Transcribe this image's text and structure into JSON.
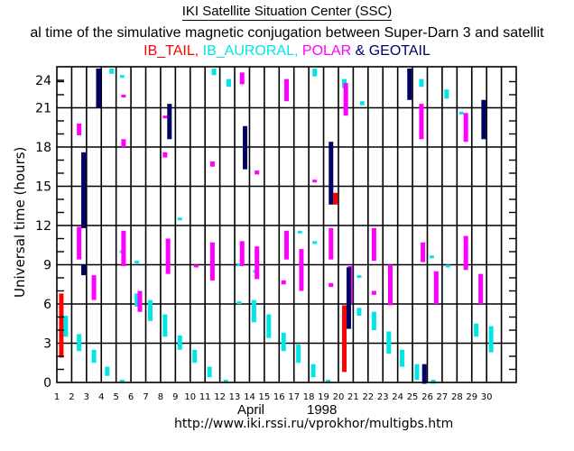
{
  "header": {
    "title": "IKI Satellite Situation Center (SSC)",
    "subtitle": "al time of the simulative magnetic conjugation between Super-Darn 3 and satellit",
    "legend": [
      {
        "label": "IB_TAIL,",
        "color": "#ff0000"
      },
      {
        "label": " IB_AURORAL,",
        "color": "#00e5e5"
      },
      {
        "label": " POLAR",
        "color": "#ff00ff"
      },
      {
        "label": " & GEOTAIL",
        "color": "#000066"
      }
    ]
  },
  "footer": {
    "month": "April",
    "year": "1998",
    "url": "http://www.iki.rssi.ru/vprokhor/multigbs.htm"
  },
  "chart_data": {
    "type": "scatter",
    "title": "IKI Satellite Situation Center (SSC)",
    "subtitle": "al time of the simulative magnetic conjugation between Super-Darn 3 and satellit",
    "xlabel": "April 1998",
    "ylabel": "Universal time (hours)",
    "xlim": [
      1,
      32
    ],
    "ylim": [
      0,
      24
    ],
    "x_ticks": [
      1,
      2,
      3,
      4,
      5,
      6,
      7,
      8,
      9,
      10,
      11,
      12,
      13,
      14,
      15,
      16,
      17,
      18,
      19,
      20,
      21,
      22,
      23,
      24,
      25,
      26,
      27,
      28,
      29,
      30
    ],
    "y_ticks": [
      0,
      3,
      6,
      9,
      12,
      15,
      18,
      21,
      24
    ],
    "grid": true,
    "legend_position": "top",
    "series": [
      {
        "name": "IB_TAIL",
        "color": "#ff0000",
        "segments": [
          {
            "day": 1.3,
            "start": 1.9,
            "end": 6.8
          },
          {
            "day": 19.8,
            "start": 13.6,
            "end": 14.5
          },
          {
            "day": 20.4,
            "start": 0.8,
            "end": 5.9
          }
        ]
      },
      {
        "name": "IB_AURORAL",
        "color": "#00e5e5",
        "segments": [
          {
            "day": 1.6,
            "start": 3.5,
            "end": 5.1
          },
          {
            "day": 2.5,
            "start": 2.4,
            "end": 3.7
          },
          {
            "day": 3.5,
            "start": 1.5,
            "end": 2.5
          },
          {
            "day": 4.4,
            "start": 0.5,
            "end": 1.2
          },
          {
            "day": 4.7,
            "start": 23.6,
            "end": 24.0
          },
          {
            "day": 5.4,
            "start": 23.3,
            "end": 23.5
          },
          {
            "day": 5.4,
            "start": -0.1,
            "end": 0.1
          },
          {
            "day": 5.4,
            "start": 9.9,
            "end": 10.1
          },
          {
            "day": 6.4,
            "start": 9.1,
            "end": 9.3
          },
          {
            "day": 6.4,
            "start": 5.8,
            "end": 6.8
          },
          {
            "day": 7.3,
            "start": 4.7,
            "end": 6.3
          },
          {
            "day": 8.3,
            "start": 3.5,
            "end": 5.2
          },
          {
            "day": 9.3,
            "start": 2.5,
            "end": 3.6
          },
          {
            "day": 9.3,
            "start": 12.4,
            "end": 12.6
          },
          {
            "day": 10.3,
            "start": 1.5,
            "end": 2.5
          },
          {
            "day": 11.3,
            "start": 0.4,
            "end": 1.2
          },
          {
            "day": 11.6,
            "start": 23.5,
            "end": 24.0
          },
          {
            "day": 12.6,
            "start": 22.6,
            "end": 23.2
          },
          {
            "day": 12.4,
            "start": -0.1,
            "end": 0.1
          },
          {
            "day": 13.3,
            "start": 6.0,
            "end": 6.2
          },
          {
            "day": 13.3,
            "start": 8.9,
            "end": 9.1
          },
          {
            "day": 14.3,
            "start": 4.6,
            "end": 6.3
          },
          {
            "day": 14.4,
            "start": 8.4,
            "end": 8.6
          },
          {
            "day": 15.3,
            "start": 3.4,
            "end": 5.2
          },
          {
            "day": 16.3,
            "start": 2.4,
            "end": 3.8
          },
          {
            "day": 17.3,
            "start": 1.5,
            "end": 2.9
          },
          {
            "day": 17.4,
            "start": 11.4,
            "end": 11.6
          },
          {
            "day": 18.3,
            "start": 0.4,
            "end": 1.4
          },
          {
            "day": 18.4,
            "start": 10.6,
            "end": 10.8
          },
          {
            "day": 18.4,
            "start": 23.4,
            "end": 24.0
          },
          {
            "day": 19.3,
            "start": -0.1,
            "end": 0.1
          },
          {
            "day": 20.4,
            "start": 22.5,
            "end": 23.2
          },
          {
            "day": 21.4,
            "start": 8.0,
            "end": 8.2
          },
          {
            "day": 21.4,
            "start": 5.1,
            "end": 5.7
          },
          {
            "day": 21.6,
            "start": 21.2,
            "end": 21.5
          },
          {
            "day": 22.4,
            "start": 4.0,
            "end": 5.4
          },
          {
            "day": 23.4,
            "start": 2.2,
            "end": 3.9
          },
          {
            "day": 24.3,
            "start": 1.2,
            "end": 2.5
          },
          {
            "day": 24.8,
            "start": 23.5,
            "end": 24.0
          },
          {
            "day": 25.3,
            "start": 0.2,
            "end": 1.4
          },
          {
            "day": 25.6,
            "start": 22.6,
            "end": 23.2
          },
          {
            "day": 26.3,
            "start": 9.5,
            "end": 9.7
          },
          {
            "day": 26.4,
            "start": -0.1,
            "end": 0.2
          },
          {
            "day": 27.3,
            "start": 21.7,
            "end": 22.4
          },
          {
            "day": 27.4,
            "start": 8.8,
            "end": 9.0
          },
          {
            "day": 28.3,
            "start": 20.5,
            "end": 20.7
          },
          {
            "day": 29.3,
            "start": 3.5,
            "end": 4.5
          },
          {
            "day": 30.3,
            "start": 2.3,
            "end": 4.3
          }
        ]
      },
      {
        "name": "POLAR",
        "color": "#ff00ff",
        "segments": [
          {
            "day": 2.5,
            "start": 18.9,
            "end": 19.8
          },
          {
            "day": 2.5,
            "start": 9.4,
            "end": 11.9
          },
          {
            "day": 3.5,
            "start": 6.3,
            "end": 8.2
          },
          {
            "day": 5.5,
            "start": 21.8,
            "end": 22.0
          },
          {
            "day": 5.5,
            "start": 18.0,
            "end": 18.6
          },
          {
            "day": 5.5,
            "start": 8.9,
            "end": 11.6
          },
          {
            "day": 6.6,
            "start": 5.4,
            "end": 7.0
          },
          {
            "day": 8.3,
            "start": 17.2,
            "end": 17.6
          },
          {
            "day": 8.3,
            "start": 20.2,
            "end": 20.4
          },
          {
            "day": 8.5,
            "start": 8.3,
            "end": 11.0
          },
          {
            "day": 10.4,
            "start": 8.8,
            "end": 9.0
          },
          {
            "day": 11.5,
            "start": 16.5,
            "end": 16.9
          },
          {
            "day": 11.5,
            "start": 7.8,
            "end": 10.7
          },
          {
            "day": 13.5,
            "start": 22.8,
            "end": 23.7
          },
          {
            "day": 13.5,
            "start": 8.9,
            "end": 10.8
          },
          {
            "day": 14.5,
            "start": 15.9,
            "end": 16.2
          },
          {
            "day": 14.5,
            "start": 7.9,
            "end": 10.4
          },
          {
            "day": 16.5,
            "start": 21.5,
            "end": 23.2
          },
          {
            "day": 16.5,
            "start": 9.4,
            "end": 11.6
          },
          {
            "day": 16.3,
            "start": 7.5,
            "end": 7.8
          },
          {
            "day": 17.5,
            "start": 7.0,
            "end": 10.2
          },
          {
            "day": 18.4,
            "start": 15.3,
            "end": 15.5
          },
          {
            "day": 19.5,
            "start": 9.4,
            "end": 11.8
          },
          {
            "day": 19.5,
            "start": 7.3,
            "end": 7.6
          },
          {
            "day": 20.5,
            "start": 20.4,
            "end": 22.9
          },
          {
            "day": 20.8,
            "start": 6.0,
            "end": 8.9
          },
          {
            "day": 22.4,
            "start": 9.3,
            "end": 11.8
          },
          {
            "day": 22.4,
            "start": 6.7,
            "end": 7.0
          },
          {
            "day": 23.5,
            "start": 5.9,
            "end": 9.0
          },
          {
            "day": 25.6,
            "start": 18.6,
            "end": 21.3
          },
          {
            "day": 25.7,
            "start": 9.2,
            "end": 10.7
          },
          {
            "day": 26.6,
            "start": 6.0,
            "end": 8.5
          },
          {
            "day": 28.6,
            "start": 18.4,
            "end": 20.6
          },
          {
            "day": 28.6,
            "start": 8.6,
            "end": 11.2
          },
          {
            "day": 29.6,
            "start": 6.0,
            "end": 8.3
          }
        ]
      },
      {
        "name": "GEOTAIL",
        "color": "#000066",
        "segments": [
          {
            "day": 2.8,
            "start": 8.2,
            "end": 9.0
          },
          {
            "day": 2.8,
            "start": 11.8,
            "end": 17.6
          },
          {
            "day": 3.8,
            "start": 21.0,
            "end": 24.0
          },
          {
            "day": 8.6,
            "start": 18.6,
            "end": 21.3
          },
          {
            "day": 13.7,
            "start": 16.3,
            "end": 19.6
          },
          {
            "day": 19.5,
            "start": 13.6,
            "end": 18.4
          },
          {
            "day": 20.7,
            "start": 4.1,
            "end": 8.8
          },
          {
            "day": 24.8,
            "start": 21.6,
            "end": 24.0
          },
          {
            "day": 25.8,
            "start": -0.1,
            "end": 1.4
          },
          {
            "day": 29.8,
            "start": 18.6,
            "end": 21.6
          }
        ]
      }
    ]
  }
}
